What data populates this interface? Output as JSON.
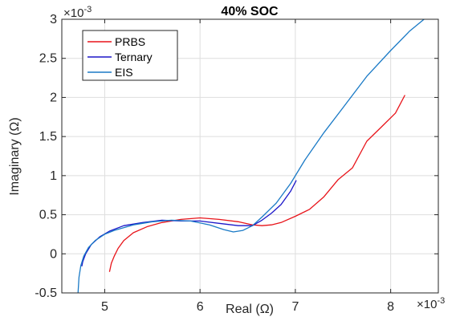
{
  "chart_data": {
    "type": "line",
    "title": "40% SOC",
    "xlabel": "Real (Ω)",
    "ylabel": "Imaginary (Ω)",
    "x_multiplier": "×10",
    "x_exponent": "-3",
    "y_multiplier": "×10",
    "y_exponent": "-3",
    "xlim": [
      4.55,
      8.5
    ],
    "ylim": [
      -0.5,
      3.0
    ],
    "xticks": [
      5,
      6,
      7,
      8
    ],
    "xtick_labels": [
      "5",
      "6",
      "7",
      "8"
    ],
    "yticks": [
      -0.5,
      0,
      0.5,
      1,
      1.5,
      2,
      2.5,
      3
    ],
    "ytick_labels": [
      "-0.5",
      "0",
      "0.5",
      "1",
      "1.5",
      "2",
      "2.5",
      "3"
    ],
    "grid": true,
    "legend_position": "top-left",
    "series": [
      {
        "name": "PRBS",
        "color": "#e8141a",
        "x": [
          5.05,
          5.07,
          5.1,
          5.14,
          5.2,
          5.3,
          5.45,
          5.6,
          5.8,
          6.0,
          6.2,
          6.4,
          6.55,
          6.65,
          6.75,
          6.85,
          7.0,
          7.15,
          7.3,
          7.45,
          7.6,
          7.75,
          7.9,
          8.05,
          8.15
        ],
        "y": [
          -0.23,
          -0.12,
          -0.03,
          0.07,
          0.17,
          0.27,
          0.35,
          0.4,
          0.44,
          0.46,
          0.44,
          0.41,
          0.37,
          0.36,
          0.37,
          0.4,
          0.48,
          0.57,
          0.73,
          0.95,
          1.1,
          1.44,
          1.62,
          1.8,
          2.03
        ]
      },
      {
        "name": "Ternary",
        "color": "#1c17c9",
        "x": [
          4.76,
          4.77,
          4.8,
          4.86,
          4.95,
          5.05,
          5.2,
          5.4,
          5.6,
          5.8,
          6.0,
          6.2,
          6.4,
          6.55,
          6.65,
          6.75,
          6.85,
          6.95,
          7.01
        ],
        "y": [
          -0.16,
          -0.1,
          0.0,
          0.12,
          0.22,
          0.29,
          0.36,
          0.4,
          0.43,
          0.42,
          0.42,
          0.39,
          0.36,
          0.36,
          0.43,
          0.52,
          0.63,
          0.8,
          0.94
        ]
      },
      {
        "name": "EIS",
        "color": "#1a7ac6",
        "x": [
          4.72,
          4.73,
          4.75,
          4.78,
          4.83,
          4.9,
          5.0,
          5.1,
          5.3,
          5.5,
          5.7,
          5.9,
          6.1,
          6.25,
          6.35,
          6.45,
          6.55,
          6.65,
          6.8,
          6.95,
          7.1,
          7.3,
          7.5,
          7.75,
          8.0,
          8.2,
          8.35
        ],
        "y": [
          -0.5,
          -0.3,
          -0.15,
          -0.03,
          0.08,
          0.17,
          0.25,
          0.3,
          0.37,
          0.41,
          0.43,
          0.42,
          0.37,
          0.31,
          0.28,
          0.3,
          0.36,
          0.47,
          0.65,
          0.9,
          1.2,
          1.55,
          1.87,
          2.27,
          2.6,
          2.85,
          3.0
        ]
      }
    ]
  }
}
